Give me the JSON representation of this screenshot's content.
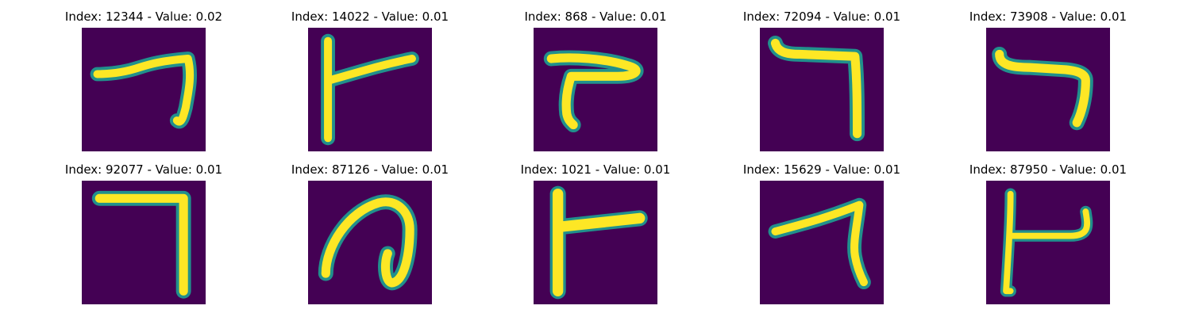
{
  "colors": {
    "background": "#440154",
    "mid_low": "#31688e",
    "mid": "#21908c",
    "mid_high": "#35b779",
    "stroke": "#fde725"
  },
  "panels": [
    {
      "title": "Index: 12344 - Value: 0.02",
      "depicts": "handwritten digit seven"
    },
    {
      "title": "Index: 14022 - Value: 0.01",
      "depicts": "handwritten digit seven"
    },
    {
      "title": "Index: 868 - Value: 0.01",
      "depicts": "handwritten digit seven"
    },
    {
      "title": "Index: 72094 - Value: 0.01",
      "depicts": "handwritten digit seven"
    },
    {
      "title": "Index: 73908 - Value: 0.01",
      "depicts": "handwritten digit seven"
    },
    {
      "title": "Index: 92077 - Value: 0.01",
      "depicts": "handwritten digit seven"
    },
    {
      "title": "Index: 87126 - Value: 0.01",
      "depicts": "handwritten digit"
    },
    {
      "title": "Index: 1021 - Value: 0.01",
      "depicts": "handwritten digit seven"
    },
    {
      "title": "Index: 15629 - Value: 0.01",
      "depicts": "handwritten digit seven"
    },
    {
      "title": "Index: 87950 - Value: 0.01",
      "depicts": "handwritten digit seven"
    }
  ]
}
